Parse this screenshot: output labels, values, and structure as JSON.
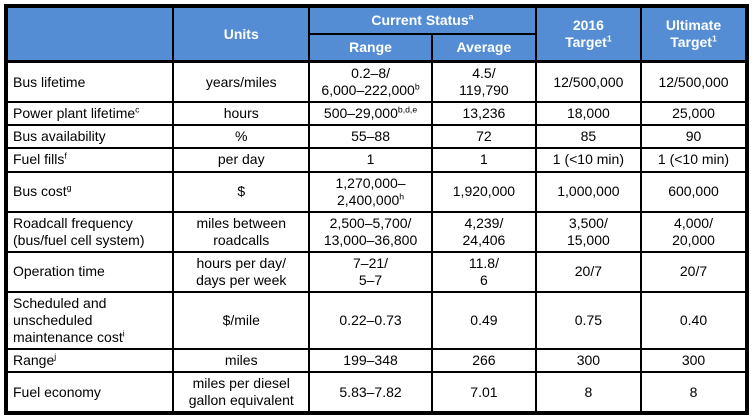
{
  "colors": {
    "header_bg": "#548DD4",
    "header_text": "#FFFFFF",
    "border": "#000000",
    "body_text": "#000000"
  },
  "table": {
    "header": {
      "corner": "",
      "units": "Units",
      "current_status": "Current Status^a",
      "range": "Range",
      "average": "Average",
      "target_2016": "2016\nTarget^1",
      "ultimate_target": "Ultimate\nTarget^1"
    },
    "rows": [
      {
        "label": "Bus lifetime",
        "units": "years/miles",
        "range": "0.2–8/\n6,000–222,000^b",
        "average": "4.5/\n119,790",
        "target_2016": "12/500,000",
        "ultimate_target": "12/500,000"
      },
      {
        "label": "Power plant lifetime^c",
        "units": "hours",
        "range": "500–29,000^b,d,e",
        "average": "13,236",
        "target_2016": "18,000",
        "ultimate_target": "25,000"
      },
      {
        "label": "Bus availability",
        "units": "%",
        "range": "55–88",
        "average": "72",
        "target_2016": "85",
        "ultimate_target": "90"
      },
      {
        "label": "Fuel fills^f",
        "units": "per day",
        "range": "1",
        "average": "1",
        "target_2016": "1 (<10 min)",
        "ultimate_target": "1 (<10 min)"
      },
      {
        "label": "Bus cost^g",
        "units": "$",
        "range": "1,270,000–\n2,400,000^h",
        "average": "1,920,000",
        "target_2016": "1,000,000",
        "ultimate_target": "600,000"
      },
      {
        "label": "Roadcall frequency\n(bus/fuel cell system)",
        "units": "miles between\nroadcalls",
        "range": "2,500–5,700/\n13,000–36,800",
        "average": "4,239/\n24,406",
        "target_2016": "3,500/\n15,000",
        "ultimate_target": "4,000/\n20,000"
      },
      {
        "label": "Operation time",
        "units": "hours per day/\ndays per week",
        "range": "7–21/\n5–7",
        "average": "11.8/\n6",
        "target_2016": "20/7",
        "ultimate_target": "20/7"
      },
      {
        "label": "Scheduled and\nunscheduled\nmaintenance cost^i",
        "units": "$/mile",
        "range": "0.22–0.73",
        "average": "0.49",
        "target_2016": "0.75",
        "ultimate_target": "0.40"
      },
      {
        "label": "Range^j",
        "units": "miles",
        "range": "199–348",
        "average": "266",
        "target_2016": "300",
        "ultimate_target": "300"
      },
      {
        "label": "Fuel economy",
        "units": "miles per diesel\ngallon equivalent",
        "range": "5.83–7.82",
        "average": "7.01",
        "target_2016": "8",
        "ultimate_target": "8"
      }
    ]
  }
}
